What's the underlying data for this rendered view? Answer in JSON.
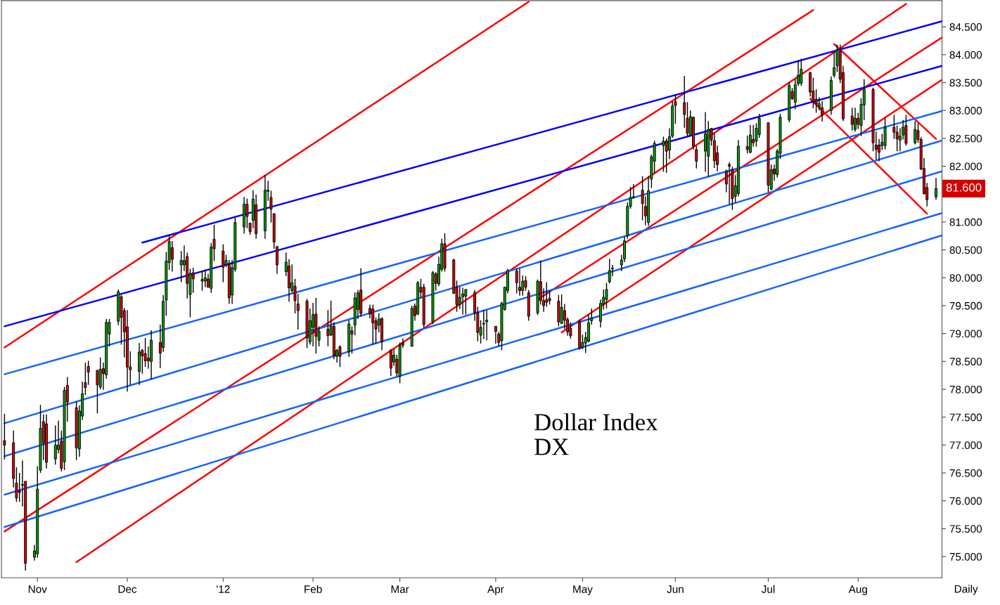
{
  "chart_data": {
    "type": "candlestick",
    "colors": [
      "#00a000",
      "#dd0000"
    ],
    "xlim": [
      "2011-10-20",
      "2012-08-29"
    ],
    "xticks": [
      {
        "value": "2011-11-01",
        "label": "Nov"
      },
      {
        "value": "2011-12-01",
        "label": "Dec"
      },
      {
        "value": "2012-01-02",
        "label": "'12"
      },
      {
        "value": "2012-02-01",
        "label": "Feb"
      },
      {
        "value": "2012-03-01",
        "label": "Mar"
      },
      {
        "value": "2012-04-02",
        "label": "Apr"
      },
      {
        "value": "2012-05-01",
        "label": "May"
      },
      {
        "value": "2012-06-01",
        "label": "Jun"
      },
      {
        "value": "2012-07-02",
        "label": "Jul"
      },
      {
        "value": "2012-08-01",
        "label": "Aug"
      }
    ],
    "ylim": [
      74.62,
      84.97
    ],
    "yticks": [
      {
        "value": 75,
        "label": "75.000"
      },
      {
        "value": 75.5,
        "label": "75.500"
      },
      {
        "value": 76,
        "label": "76.000"
      },
      {
        "value": 76.5,
        "label": "76.500"
      },
      {
        "value": 77,
        "label": "77.000"
      },
      {
        "value": 77.5,
        "label": "77.500"
      },
      {
        "value": 78,
        "label": "78.000"
      },
      {
        "value": 78.5,
        "label": "78.500"
      },
      {
        "value": 79,
        "label": "79.000"
      },
      {
        "value": 79.5,
        "label": "79.500"
      },
      {
        "value": 80,
        "label": "80.000"
      },
      {
        "value": 80.5,
        "label": "80.500"
      },
      {
        "value": 81,
        "label": "81.000"
      },
      {
        "value": 81.5,
        "label": null
      },
      {
        "value": 82,
        "label": "82.000"
      },
      {
        "value": 82.5,
        "label": "82.500"
      },
      {
        "value": 83,
        "label": "83.000"
      },
      {
        "value": 83.5,
        "label": "83.500"
      },
      {
        "value": 84,
        "label": "84.000"
      },
      {
        "value": 84.5,
        "label": "84.500"
      }
    ],
    "grid": false,
    "legend": false,
    "annotations": [
      "Dollar Index\nDX",
      "81.600",
      "Daily"
    ],
    "series": [
      {
        "x": [
          "2011-10-21",
          "2011-10-24",
          "2011-10-25",
          "2011-10-26",
          "2011-10-27",
          "2011-10-28",
          "2011-10-31",
          "2011-11-01",
          "2011-11-02",
          "2011-11-03",
          "2011-11-04",
          "2011-11-07",
          "2011-11-08",
          "2011-11-09",
          "2011-11-10",
          "2011-11-11",
          "2011-11-14",
          "2011-11-15",
          "2011-11-16",
          "2011-11-17",
          "2011-11-18",
          "2011-11-21",
          "2011-11-22",
          "2011-11-23",
          "2011-11-24",
          "2011-11-25",
          "2011-11-28",
          "2011-11-29",
          "2011-11-30",
          "2011-12-01",
          "2011-12-02",
          "2011-12-05",
          "2011-12-06",
          "2011-12-07",
          "2011-12-08",
          "2011-12-09",
          "2011-12-12",
          "2011-12-13",
          "2011-12-14",
          "2011-12-15",
          "2011-12-16",
          "2011-12-19",
          "2011-12-20",
          "2011-12-21",
          "2011-12-22",
          "2011-12-23",
          "2011-12-26",
          "2011-12-27",
          "2011-12-28",
          "2011-12-29",
          "2011-12-30",
          "2012-01-02",
          "2012-01-03",
          "2012-01-04",
          "2012-01-05",
          "2012-01-06",
          "2012-01-09",
          "2012-01-10",
          "2012-01-11",
          "2012-01-12",
          "2012-01-13",
          "2012-01-16",
          "2012-01-17",
          "2012-01-18",
          "2012-01-19",
          "2012-01-20",
          "2012-01-23",
          "2012-01-24",
          "2012-01-25",
          "2012-01-26",
          "2012-01-27",
          "2012-01-30",
          "2012-01-31",
          "2012-02-01",
          "2012-02-02",
          "2012-02-03",
          "2012-02-06",
          "2012-02-07",
          "2012-02-08",
          "2012-02-09",
          "2012-02-10",
          "2012-02-13",
          "2012-02-14",
          "2012-02-15",
          "2012-02-16",
          "2012-02-17",
          "2012-02-20",
          "2012-02-21",
          "2012-02-22",
          "2012-02-23",
          "2012-02-24",
          "2012-02-27",
          "2012-02-28",
          "2012-02-29",
          "2012-03-01",
          "2012-03-02",
          "2012-03-05",
          "2012-03-06",
          "2012-03-07",
          "2012-03-08",
          "2012-03-09",
          "2012-03-12",
          "2012-03-13",
          "2012-03-14",
          "2012-03-15",
          "2012-03-16",
          "2012-03-19",
          "2012-03-20",
          "2012-03-21",
          "2012-03-22",
          "2012-03-23",
          "2012-03-26",
          "2012-03-27",
          "2012-03-28",
          "2012-03-29",
          "2012-03-30",
          "2012-04-02",
          "2012-04-03",
          "2012-04-04",
          "2012-04-05",
          "2012-04-06",
          "2012-04-09",
          "2012-04-10",
          "2012-04-11",
          "2012-04-12",
          "2012-04-13",
          "2012-04-16",
          "2012-04-17",
          "2012-04-18",
          "2012-04-19",
          "2012-04-20",
          "2012-04-23",
          "2012-04-24",
          "2012-04-25",
          "2012-04-26",
          "2012-04-27",
          "2012-04-30",
          "2012-05-01",
          "2012-05-02",
          "2012-05-03",
          "2012-05-04",
          "2012-05-07",
          "2012-05-08",
          "2012-05-09",
          "2012-05-10",
          "2012-05-11",
          "2012-05-14",
          "2012-05-15",
          "2012-05-16",
          "2012-05-17",
          "2012-05-18",
          "2012-05-21",
          "2012-05-22",
          "2012-05-23",
          "2012-05-24",
          "2012-05-25",
          "2012-05-28",
          "2012-05-29",
          "2012-05-30",
          "2012-05-31",
          "2012-06-01",
          "2012-06-04",
          "2012-06-05",
          "2012-06-06",
          "2012-06-07",
          "2012-06-08",
          "2012-06-11",
          "2012-06-12",
          "2012-06-13",
          "2012-06-14",
          "2012-06-15",
          "2012-06-18",
          "2012-06-19",
          "2012-06-20",
          "2012-06-21",
          "2012-06-22",
          "2012-06-25",
          "2012-06-26",
          "2012-06-27",
          "2012-06-28",
          "2012-06-29",
          "2012-07-02",
          "2012-07-03",
          "2012-07-04",
          "2012-07-05",
          "2012-07-06",
          "2012-07-09",
          "2012-07-10",
          "2012-07-11",
          "2012-07-12",
          "2012-07-13",
          "2012-07-16",
          "2012-07-17",
          "2012-07-18",
          "2012-07-19",
          "2012-07-20",
          "2012-07-23",
          "2012-07-24",
          "2012-07-25",
          "2012-07-26",
          "2012-07-27",
          "2012-07-30",
          "2012-07-31",
          "2012-08-01",
          "2012-08-02",
          "2012-08-03",
          "2012-08-06",
          "2012-08-07",
          "2012-08-08",
          "2012-08-09",
          "2012-08-10",
          "2012-08-13",
          "2012-08-14",
          "2012-08-15",
          "2012-08-16",
          "2012-08-17",
          "2012-08-20",
          "2012-08-21",
          "2012-08-22",
          "2012-08-23",
          "2012-08-24",
          "2012-08-27"
        ],
        "ohlc": [
          [
            77.08,
            77.56,
            76.74,
            77.0
          ],
          [
            77.04,
            77.26,
            76.24,
            76.4
          ],
          [
            76.32,
            76.6,
            75.98,
            76.05
          ],
          [
            76.18,
            76.5,
            75.98,
            76.15
          ],
          [
            76.28,
            76.72,
            75.9,
            76.28
          ],
          [
            76.35,
            76.35,
            74.75,
            74.88
          ],
          [
            74.99,
            75.21,
            74.93,
            75.1
          ],
          [
            75.05,
            76.62,
            74.98,
            76.21
          ],
          [
            76.55,
            77.72,
            76.5,
            77.3
          ],
          [
            77.42,
            77.55,
            76.73,
            77.04
          ],
          [
            77.38,
            77.55,
            76.58,
            76.69
          ],
          [
            76.75,
            77.35,
            76.65,
            77.0
          ],
          [
            76.92,
            77.44,
            76.85,
            77.0
          ],
          [
            77.07,
            77.26,
            76.53,
            76.58
          ],
          [
            76.7,
            78.04,
            76.55,
            77.98
          ],
          [
            78.07,
            78.22,
            77.42,
            77.77
          ],
          [
            77.67,
            77.78,
            76.73,
            76.95
          ],
          [
            76.93,
            77.71,
            76.79,
            77.61
          ],
          [
            77.52,
            78.14,
            77.45,
            77.92
          ],
          [
            78.12,
            78.48,
            77.9,
            78.03
          ],
          [
            78.41,
            78.51,
            78.08,
            78.31
          ],
          [
            78.34,
            78.34,
            77.57,
            78.08
          ],
          [
            78.04,
            78.57,
            78.0,
            78.36
          ],
          [
            78.37,
            78.48,
            77.99,
            78.28
          ],
          [
            78.26,
            79.26,
            78.19,
            79.2
          ],
          [
            78.99,
            79.26,
            78.77,
            79.2
          ],
          [
            79.22,
            79.79,
            79.15,
            79.75
          ],
          [
            79.66,
            79.69,
            78.8,
            79.29
          ],
          [
            79.41,
            79.46,
            78.57,
            79.03
          ],
          [
            79.12,
            79.42,
            77.96,
            78.4
          ],
          [
            78.4,
            78.68,
            78.08,
            78.35
          ],
          [
            78.32,
            78.83,
            78.08,
            78.67
          ],
          [
            78.7,
            78.72,
            78.28,
            78.6
          ],
          [
            78.64,
            78.92,
            78.4,
            78.51
          ],
          [
            78.56,
            78.77,
            78.37,
            78.51
          ],
          [
            78.5,
            79.06,
            78.18,
            78.88
          ],
          [
            78.84,
            79.16,
            78.38,
            78.65
          ],
          [
            78.75,
            79.69,
            78.67,
            79.58
          ],
          [
            79.6,
            80.46,
            79.32,
            80.3
          ],
          [
            80.27,
            80.77,
            80.14,
            80.65
          ],
          [
            80.54,
            80.66,
            80.11,
            80.33
          ],
          [
            80.23,
            80.48,
            79.92,
            80.31
          ],
          [
            80.23,
            80.58,
            80.12,
            80.31
          ],
          [
            80.38,
            80.45,
            79.63,
            79.9
          ],
          [
            79.7,
            80.16,
            79.29,
            80.08
          ],
          [
            80.09,
            80.18,
            79.73,
            79.98
          ],
          [
            79.94,
            80.12,
            79.77,
            79.97
          ],
          [
            79.94,
            80.15,
            79.83,
            80.0
          ],
          [
            79.98,
            80.07,
            79.82,
            79.83
          ],
          [
            79.81,
            80.62,
            79.73,
            80.55
          ],
          [
            80.69,
            80.95,
            80.3,
            80.52
          ],
          [
            80.48,
            80.6,
            79.92,
            80.19
          ],
          [
            80.23,
            80.41,
            80.19,
            80.31
          ],
          [
            80.24,
            80.32,
            79.53,
            79.64
          ],
          [
            79.69,
            80.32,
            79.53,
            80.18
          ],
          [
            80.15,
            81.08,
            80.11,
            80.99
          ],
          [
            80.91,
            81.45,
            80.79,
            81.32
          ],
          [
            81.32,
            81.42,
            80.89,
            81.1
          ],
          [
            80.98,
            80.98,
            80.77,
            80.83
          ],
          [
            81.03,
            81.57,
            80.89,
            81.41
          ],
          [
            81.31,
            81.49,
            80.7,
            80.79
          ],
          [
            80.84,
            81.84,
            80.7,
            81.57
          ],
          [
            81.55,
            81.74,
            81.38,
            81.57
          ],
          [
            81.44,
            81.56,
            80.99,
            81.23
          ],
          [
            81.15,
            81.15,
            80.52,
            80.64
          ],
          [
            80.56,
            80.56,
            80.07,
            80.23
          ],
          [
            80.11,
            80.45,
            80.03,
            80.28
          ],
          [
            80.21,
            80.33,
            79.57,
            79.82
          ],
          [
            79.77,
            80.24,
            79.73,
            79.91
          ],
          [
            79.85,
            79.98,
            79.36,
            79.59
          ],
          [
            79.53,
            79.71,
            79.07,
            79.41
          ],
          [
            79.58,
            79.62,
            78.74,
            78.92
          ],
          [
            78.85,
            79.45,
            78.8,
            79.23
          ],
          [
            79.11,
            79.55,
            78.77,
            79.34
          ],
          [
            79.35,
            79.64,
            78.64,
            78.95
          ],
          [
            78.88,
            79.13,
            78.77,
            79.04
          ],
          [
            79.08,
            79.42,
            78.77,
            78.96
          ],
          [
            78.97,
            79.59,
            78.96,
            79.13
          ],
          [
            79.13,
            79.2,
            78.54,
            78.6
          ],
          [
            78.59,
            78.72,
            78.48,
            78.7
          ],
          [
            78.76,
            78.79,
            78.4,
            78.59
          ],
          [
            78.67,
            79.24,
            78.58,
            79.17
          ],
          [
            79.05,
            79.13,
            78.64,
            78.99
          ],
          [
            79.15,
            79.74,
            78.97,
            79.64
          ],
          [
            79.43,
            79.78,
            79.26,
            79.73
          ],
          [
            79.78,
            80.17,
            79.3,
            79.36
          ],
          [
            79.45,
            79.52,
            79.27,
            79.35
          ],
          [
            79.44,
            79.52,
            78.8,
            79.19
          ],
          [
            79.23,
            79.29,
            78.82,
            79.08
          ],
          [
            79.15,
            79.36,
            79.02,
            79.26
          ],
          [
            79.27,
            79.29,
            78.7,
            78.85
          ],
          [
            78.7,
            78.72,
            78.24,
            78.38
          ],
          [
            78.49,
            78.72,
            78.42,
            78.61
          ],
          [
            78.54,
            78.62,
            78.23,
            78.29
          ],
          [
            78.23,
            78.84,
            78.11,
            78.79
          ],
          [
            78.79,
            78.91,
            78.74,
            78.83
          ],
          [
            78.77,
            79.5,
            78.77,
            79.45
          ],
          [
            79.49,
            79.54,
            79.23,
            79.32
          ],
          [
            79.35,
            79.94,
            79.33,
            79.91
          ],
          [
            79.83,
            79.98,
            79.64,
            79.74
          ],
          [
            79.83,
            79.89,
            79.1,
            79.16
          ],
          [
            79.21,
            80.12,
            79.17,
            80.09
          ],
          [
            80.07,
            80.1,
            79.77,
            79.9
          ],
          [
            79.89,
            80.38,
            79.85,
            80.24
          ],
          [
            80.15,
            80.7,
            80.11,
            80.61
          ],
          [
            80.61,
            80.8,
            80.11,
            80.17
          ],
          [
            80.32,
            80.34,
            79.71,
            79.72
          ],
          [
            79.83,
            79.95,
            79.39,
            79.52
          ],
          [
            79.52,
            79.84,
            79.44,
            79.65
          ],
          [
            79.66,
            79.82,
            79.34,
            79.71
          ],
          [
            79.67,
            79.79,
            79.34,
            79.79
          ],
          [
            79.73,
            79.78,
            79.23,
            79.37
          ],
          [
            79.37,
            79.48,
            78.86,
            79.02
          ],
          [
            78.97,
            79.24,
            78.82,
            79.11
          ],
          [
            79.17,
            79.42,
            78.9,
            79.17
          ],
          [
            79.21,
            79.42,
            78.88,
            79.24
          ],
          [
            79.13,
            79.13,
            78.82,
            79.04
          ],
          [
            78.99,
            79.03,
            78.77,
            78.84
          ],
          [
            78.87,
            79.57,
            78.7,
            79.54
          ],
          [
            79.43,
            79.84,
            79.41,
            79.83
          ],
          [
            79.77,
            80.16,
            79.72,
            80.13
          ],
          [
            80.12,
            80.16,
            79.72,
            79.91
          ],
          [
            79.83,
            80.16,
            79.68,
            79.77
          ],
          [
            79.77,
            80.04,
            79.68,
            79.94
          ],
          [
            79.95,
            80.03,
            79.77,
            79.83
          ],
          [
            79.73,
            79.78,
            79.23,
            79.31
          ],
          [
            79.37,
            79.97,
            79.33,
            79.94
          ],
          [
            79.93,
            80.31,
            79.52,
            79.59
          ],
          [
            79.59,
            79.81,
            79.39,
            79.5
          ],
          [
            79.61,
            79.92,
            79.48,
            79.56
          ],
          [
            79.63,
            79.77,
            79.52,
            79.59
          ],
          [
            79.58,
            79.69,
            79.13,
            79.21
          ],
          [
            79.18,
            79.7,
            79.17,
            79.47
          ],
          [
            79.41,
            79.53,
            79.08,
            79.24
          ],
          [
            79.25,
            79.29,
            78.96,
            79.03
          ],
          [
            79.09,
            79.2,
            78.91,
            78.96
          ],
          [
            79.22,
            79.25,
            78.71,
            78.73
          ],
          [
            78.75,
            78.98,
            78.72,
            78.84
          ],
          [
            78.83,
            79.03,
            78.65,
            78.93
          ],
          [
            78.86,
            79.34,
            78.84,
            79.19
          ],
          [
            79.23,
            79.45,
            79.16,
            79.28
          ],
          [
            79.22,
            79.61,
            79.11,
            79.54
          ],
          [
            79.53,
            79.79,
            79.43,
            79.65
          ],
          [
            79.61,
            79.91,
            79.45,
            79.79
          ],
          [
            79.93,
            80.34,
            79.9,
            80.13
          ],
          [
            80.16,
            80.23,
            80.03,
            80.16
          ],
          [
            80.23,
            80.41,
            80.12,
            80.32
          ],
          [
            80.34,
            80.74,
            80.28,
            80.66
          ],
          [
            80.75,
            81.35,
            80.7,
            81.28
          ],
          [
            81.28,
            81.63,
            81.24,
            81.44
          ],
          [
            81.44,
            81.68,
            81.42,
            81.44
          ],
          [
            81.57,
            81.82,
            81.03,
            81.33
          ],
          [
            81.28,
            81.46,
            80.94,
            81.11
          ],
          [
            80.99,
            81.82,
            80.93,
            81.56
          ],
          [
            81.77,
            82.21,
            81.61,
            82.17
          ],
          [
            82.09,
            82.46,
            81.88,
            82.41
          ],
          [
            82.37,
            82.53,
            81.9,
            82.45
          ],
          [
            82.45,
            82.5,
            81.88,
            82.27
          ],
          [
            82.29,
            82.68,
            82.13,
            82.53
          ],
          [
            82.54,
            83.16,
            82.51,
            83.08
          ],
          [
            83.16,
            83.28,
            82.76,
            83.09
          ],
          [
            83.14,
            83.62,
            82.69,
            82.93
          ],
          [
            82.86,
            83.15,
            82.54,
            82.59
          ],
          [
            82.55,
            83.0,
            82.54,
            82.89
          ],
          [
            82.88,
            82.88,
            82.3,
            82.36
          ],
          [
            82.3,
            82.36,
            81.96,
            82.09
          ],
          [
            82.27,
            82.97,
            81.9,
            82.58
          ],
          [
            82.18,
            82.81,
            81.81,
            82.66
          ],
          [
            82.68,
            82.68,
            82.37,
            82.47
          ],
          [
            82.46,
            82.6,
            81.97,
            82.1
          ],
          [
            82.24,
            82.37,
            81.91,
            82.03
          ],
          [
            81.91,
            81.94,
            81.53,
            81.68
          ],
          [
            82.03,
            82.07,
            81.32,
            82.0
          ],
          [
            81.94,
            81.99,
            81.22,
            81.42
          ],
          [
            81.46,
            81.84,
            81.35,
            81.65
          ],
          [
            81.51,
            82.47,
            81.46,
            82.36
          ],
          [
            82.35,
            82.55,
            82.23,
            82.3
          ],
          [
            82.25,
            82.74,
            82.23,
            82.56
          ],
          [
            82.48,
            82.74,
            82.35,
            82.42
          ],
          [
            82.45,
            82.77,
            82.35,
            82.68
          ],
          [
            82.57,
            82.94,
            82.51,
            82.86
          ],
          [
            82.78,
            82.78,
            81.53,
            81.66
          ],
          [
            81.59,
            82.03,
            81.57,
            81.94
          ],
          [
            81.95,
            82.03,
            81.74,
            81.86
          ],
          [
            81.85,
            82.31,
            81.8,
            82.27
          ],
          [
            82.23,
            82.94,
            82.13,
            82.88
          ],
          [
            82.83,
            83.5,
            82.79,
            83.45
          ],
          [
            83.34,
            83.4,
            83.19,
            83.21
          ],
          [
            83.15,
            83.56,
            83.02,
            83.46
          ],
          [
            83.48,
            83.9,
            83.44,
            83.63
          ],
          [
            83.49,
            83.93,
            83.44,
            83.74
          ],
          [
            83.68,
            83.69,
            83.25,
            83.33
          ],
          [
            83.35,
            83.59,
            83.04,
            83.16
          ],
          [
            83.2,
            83.38,
            82.96,
            83.12
          ],
          [
            83.06,
            83.24,
            83.0,
            83.12
          ],
          [
            83.05,
            83.17,
            82.8,
            82.92
          ],
          [
            83.0,
            83.61,
            82.92,
            83.54
          ],
          [
            83.63,
            84.07,
            83.59,
            83.77
          ],
          [
            83.8,
            84.18,
            83.69,
            84.09
          ],
          [
            84.06,
            84.18,
            83.49,
            83.56
          ],
          [
            83.68,
            83.8,
            82.81,
            82.85
          ],
          [
            82.9,
            83.05,
            82.64,
            82.75
          ],
          [
            82.66,
            83.05,
            82.62,
            82.86
          ],
          [
            82.86,
            82.96,
            82.67,
            82.75
          ],
          [
            82.73,
            83.22,
            82.54,
            83.11
          ],
          [
            83.1,
            83.56,
            82.83,
            83.39
          ],
          [
            83.38,
            83.41,
            82.27,
            82.42
          ],
          [
            82.38,
            82.62,
            82.12,
            82.3
          ],
          [
            82.38,
            82.49,
            82.09,
            82.25
          ],
          [
            82.37,
            82.58,
            82.29,
            82.43
          ],
          [
            82.37,
            82.86,
            82.3,
            82.7
          ],
          [
            82.7,
            82.92,
            82.49,
            82.61
          ],
          [
            82.61,
            82.73,
            82.27,
            82.49
          ],
          [
            82.47,
            82.68,
            82.27,
            82.54
          ],
          [
            82.56,
            82.83,
            82.48,
            82.7
          ],
          [
            82.73,
            82.92,
            82.37,
            82.41
          ],
          [
            82.42,
            82.81,
            82.39,
            82.66
          ],
          [
            82.64,
            82.77,
            82.42,
            82.48
          ],
          [
            82.48,
            82.52,
            81.93,
            81.95
          ],
          [
            81.96,
            82.15,
            81.49,
            81.51
          ],
          [
            81.62,
            81.7,
            81.28,
            81.4
          ],
          [
            81.45,
            81.79,
            81.4,
            81.6
          ]
        ]
      },
      {
        "type": "line",
        "color": "#ff0000",
        "x": [
          "2011-10-21",
          "2012-04-13"
        ],
        "values": [
          78.75,
          84.95
        ]
      },
      {
        "type": "line",
        "color": "#ff0000",
        "x": [
          "2011-10-21",
          "2012-07-17"
        ],
        "values": [
          75.45,
          84.8
        ]
      },
      {
        "type": "line",
        "color": "#ff0000",
        "x": [
          "2011-11-14",
          "2012-08-17"
        ],
        "values": [
          74.9,
          84.91
        ]
      },
      {
        "type": "line",
        "color": "#ff0000",
        "x": [
          "2012-04-16",
          "2012-08-29"
        ],
        "values": [
          79.61,
          84.31
        ]
      },
      {
        "type": "line",
        "color": "#ff0000",
        "x": [
          "2012-04-24",
          "2012-08-29"
        ],
        "values": [
          79.02,
          83.55
        ]
      },
      {
        "type": "line",
        "color": "#ff0000",
        "x": [
          "2012-07-24",
          "2012-08-27"
        ],
        "values": [
          84.19,
          82.49
        ]
      },
      {
        "type": "line",
        "color": "#ff0000",
        "x": [
          "2012-07-16",
          "2012-08-24"
        ],
        "values": [
          83.21,
          81.15
        ]
      },
      {
        "type": "line",
        "color": "#0000ff",
        "x": [
          "2011-12-06",
          "2012-08-29"
        ],
        "values": [
          80.63,
          84.6
        ]
      },
      {
        "type": "line",
        "color": "#0000ff",
        "x": [
          "2011-10-21",
          "2012-08-29"
        ],
        "values": [
          79.13,
          83.8
        ]
      },
      {
        "type": "line",
        "color": "#1464ff",
        "x": [
          "2011-10-21",
          "2012-08-29"
        ],
        "values": [
          77.39,
          82.46
        ]
      },
      {
        "type": "line",
        "color": "#1464ff",
        "x": [
          "2011-10-21",
          "2012-08-29"
        ],
        "values": [
          76.11,
          81.16
        ]
      },
      {
        "type": "line",
        "color": "#1464ff",
        "x": [
          "2011-10-21",
          "2012-08-29"
        ],
        "values": [
          78.27,
          82.99
        ]
      },
      {
        "type": "line",
        "color": "#1464ff",
        "x": [
          "2011-10-21",
          "2012-08-29"
        ],
        "values": [
          76.8,
          81.91
        ]
      },
      {
        "type": "line",
        "color": "#1464ff",
        "x": [
          "2011-10-21",
          "2012-08-29"
        ],
        "values": [
          75.53,
          80.76
        ]
      }
    ]
  }
}
